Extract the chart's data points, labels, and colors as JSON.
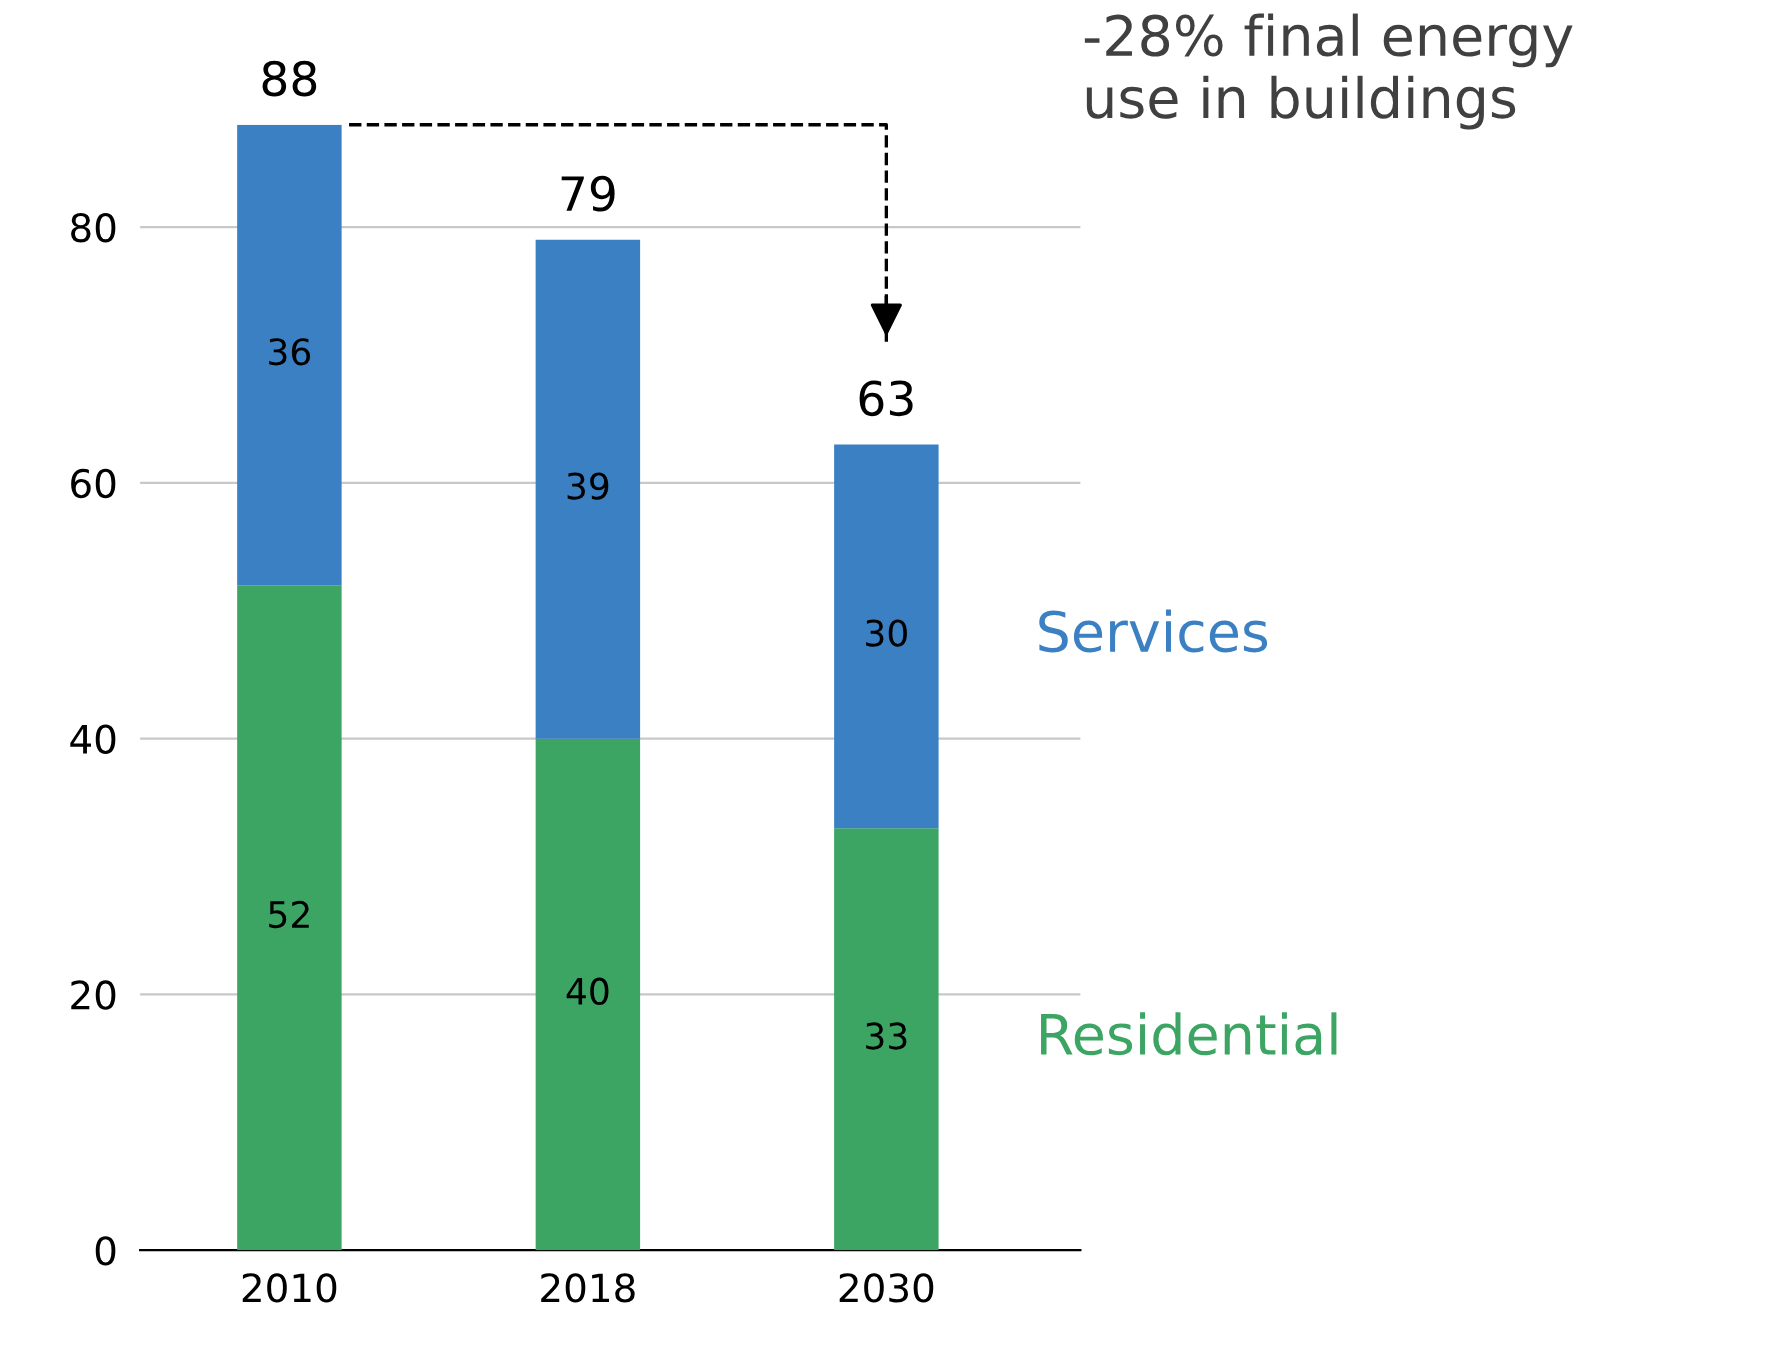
{
  "chart_data": {
    "type": "bar",
    "stacked": true,
    "categories": [
      "2010",
      "2018",
      "2030"
    ],
    "series": [
      {
        "name": "Residential",
        "color": "#3ca564",
        "values": [
          52,
          40,
          33
        ]
      },
      {
        "name": "Services",
        "color": "#3a80c3",
        "values": [
          36,
          39,
          30
        ]
      }
    ],
    "ylim": [
      0,
      88
    ],
    "yticks": [
      0,
      20,
      40,
      60,
      80
    ],
    "grid": "y",
    "data_labels": true,
    "totals": [
      "88",
      "79",
      "63"
    ],
    "annotations": [
      "-28% final energy\nuse in buildings"
    ]
  }
}
